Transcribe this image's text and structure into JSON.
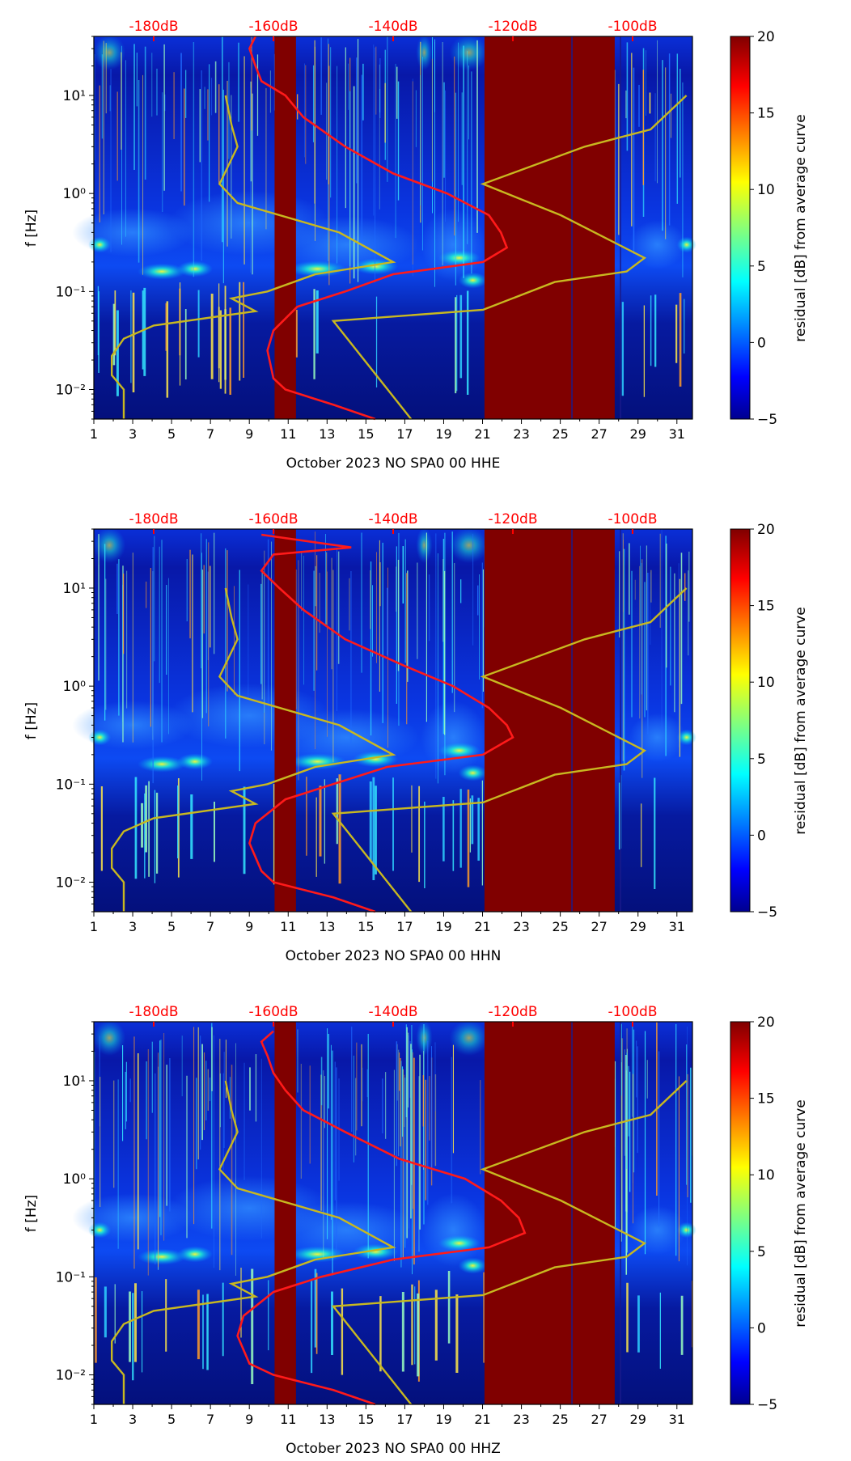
{
  "chart_data": [
    {
      "type": "heatmap",
      "component": "HHE",
      "xlabel": "October 2023 NO SPA0 00 HHE",
      "ylabel": "f [Hz]",
      "xlim": [
        1,
        31.8
      ],
      "ylim": [
        0.005,
        40
      ],
      "yscale": "log",
      "x_ticks": [
        "1",
        "3",
        "5",
        "7",
        "9",
        "11",
        "13",
        "15",
        "17",
        "19",
        "21",
        "23",
        "25",
        "27",
        "29",
        "31"
      ],
      "y_ticks": [
        {
          "value": 0.01,
          "label": "10⁻²"
        },
        {
          "value": 0.1,
          "label": "10⁻¹"
        },
        {
          "value": 1,
          "label": "10⁰"
        },
        {
          "value": 10,
          "label": "10¹"
        }
      ],
      "top_axis": {
        "labels": [
          "-180dB",
          "-160dB",
          "-140dB",
          "-120dB",
          "-100dB"
        ],
        "db_range": [
          -190,
          -90
        ]
      },
      "colorbar": {
        "label": "residual [dB] from average curve",
        "range": [
          -5,
          20
        ],
        "ticks": [
          "−5",
          "0",
          "5",
          "10",
          "15",
          "20"
        ]
      },
      "saturated_days": [
        [
          10.3,
          11.4
        ],
        [
          21.1,
          27.8
        ]
      ],
      "red_curve_db": [
        {
          "f": 40,
          "db": -163
        },
        {
          "f": 30,
          "db": -164
        },
        {
          "f": 20,
          "db": -163
        },
        {
          "f": 14,
          "db": -162
        },
        {
          "f": 10,
          "db": -158
        },
        {
          "f": 6,
          "db": -155
        },
        {
          "f": 3,
          "db": -148
        },
        {
          "f": 1.6,
          "db": -140
        },
        {
          "f": 1,
          "db": -131
        },
        {
          "f": 0.6,
          "db": -124
        },
        {
          "f": 0.4,
          "db": -122
        },
        {
          "f": 0.28,
          "db": -121
        },
        {
          "f": 0.2,
          "db": -125
        },
        {
          "f": 0.15,
          "db": -140
        },
        {
          "f": 0.1,
          "db": -148
        },
        {
          "f": 0.07,
          "db": -156
        },
        {
          "f": 0.04,
          "db": -160
        },
        {
          "f": 0.025,
          "db": -161
        },
        {
          "f": 0.013,
          "db": -160
        },
        {
          "f": 0.01,
          "db": -158
        },
        {
          "f": 0.007,
          "db": -150
        },
        {
          "f": 0.005,
          "db": -143
        }
      ]
    },
    {
      "type": "heatmap",
      "component": "HHN",
      "xlabel": "October 2023 NO SPA0 00 HHN",
      "ylabel": "f [Hz]",
      "xlim": [
        1,
        31.8
      ],
      "ylim": [
        0.005,
        40
      ],
      "yscale": "log",
      "x_ticks": [
        "1",
        "3",
        "5",
        "7",
        "9",
        "11",
        "13",
        "15",
        "17",
        "19",
        "21",
        "23",
        "25",
        "27",
        "29",
        "31"
      ],
      "y_ticks": [
        {
          "value": 0.01,
          "label": "10⁻²"
        },
        {
          "value": 0.1,
          "label": "10⁻¹"
        },
        {
          "value": 1,
          "label": "10⁰"
        },
        {
          "value": 10,
          "label": "10¹"
        }
      ],
      "top_axis": {
        "labels": [
          "-180dB",
          "-160dB",
          "-140dB",
          "-120dB",
          "-100dB"
        ],
        "db_range": [
          -190,
          -90
        ]
      },
      "colorbar": {
        "label": "residual [dB] from average curve",
        "range": [
          -5,
          20
        ],
        "ticks": [
          "−5",
          "0",
          "5",
          "10",
          "15",
          "20"
        ]
      },
      "saturated_days": [
        [
          10.3,
          11.4
        ],
        [
          21.1,
          27.8
        ]
      ],
      "red_curve_db": [
        {
          "f": 35,
          "db": -162
        },
        {
          "f": 26,
          "db": -147
        },
        {
          "f": 22,
          "db": -160
        },
        {
          "f": 15,
          "db": -162
        },
        {
          "f": 10,
          "db": -159
        },
        {
          "f": 6,
          "db": -155
        },
        {
          "f": 3,
          "db": -148
        },
        {
          "f": 1.6,
          "db": -138
        },
        {
          "f": 1,
          "db": -130
        },
        {
          "f": 0.6,
          "db": -124
        },
        {
          "f": 0.4,
          "db": -121
        },
        {
          "f": 0.3,
          "db": -120
        },
        {
          "f": 0.2,
          "db": -125
        },
        {
          "f": 0.15,
          "db": -141
        },
        {
          "f": 0.1,
          "db": -150
        },
        {
          "f": 0.07,
          "db": -158
        },
        {
          "f": 0.04,
          "db": -163
        },
        {
          "f": 0.025,
          "db": -164
        },
        {
          "f": 0.013,
          "db": -162
        },
        {
          "f": 0.01,
          "db": -160
        },
        {
          "f": 0.007,
          "db": -150
        },
        {
          "f": 0.005,
          "db": -143
        }
      ]
    },
    {
      "type": "heatmap",
      "component": "HHZ",
      "xlabel": "October 2023 NO SPA0 00 HHZ",
      "ylabel": "f [Hz]",
      "xlim": [
        1,
        31.8
      ],
      "ylim": [
        0.005,
        40
      ],
      "yscale": "log",
      "x_ticks": [
        "1",
        "3",
        "5",
        "7",
        "9",
        "11",
        "13",
        "15",
        "17",
        "19",
        "21",
        "23",
        "25",
        "27",
        "29",
        "31"
      ],
      "y_ticks": [
        {
          "value": 0.01,
          "label": "10⁻²"
        },
        {
          "value": 0.1,
          "label": "10⁻¹"
        },
        {
          "value": 1,
          "label": "10⁰"
        },
        {
          "value": 10,
          "label": "10¹"
        }
      ],
      "top_axis": {
        "labels": [
          "-180dB",
          "-160dB",
          "-140dB",
          "-120dB",
          "-100dB"
        ],
        "db_range": [
          -190,
          -90
        ]
      },
      "colorbar": {
        "label": "residual [dB] from average curve",
        "range": [
          -5,
          20
        ],
        "ticks": [
          "−5",
          "0",
          "5",
          "10",
          "15",
          "20"
        ]
      },
      "saturated_days": [
        [
          10.3,
          11.4
        ],
        [
          21.1,
          27.8
        ]
      ],
      "red_curve_db": [
        {
          "f": 32,
          "db": -160
        },
        {
          "f": 25,
          "db": -162
        },
        {
          "f": 18,
          "db": -161
        },
        {
          "f": 12,
          "db": -160
        },
        {
          "f": 8,
          "db": -158
        },
        {
          "f": 5,
          "db": -155
        },
        {
          "f": 3,
          "db": -148
        },
        {
          "f": 1.6,
          "db": -139
        },
        {
          "f": 1,
          "db": -128
        },
        {
          "f": 0.6,
          "db": -122
        },
        {
          "f": 0.4,
          "db": -119
        },
        {
          "f": 0.28,
          "db": -118
        },
        {
          "f": 0.2,
          "db": -124
        },
        {
          "f": 0.15,
          "db": -140
        },
        {
          "f": 0.1,
          "db": -152
        },
        {
          "f": 0.07,
          "db": -160
        },
        {
          "f": 0.04,
          "db": -165
        },
        {
          "f": 0.025,
          "db": -166
        },
        {
          "f": 0.013,
          "db": -164
        },
        {
          "f": 0.01,
          "db": -160
        },
        {
          "f": 0.007,
          "db": -150
        },
        {
          "f": 0.005,
          "db": -143
        }
      ]
    }
  ],
  "reference_curves": {
    "color": "#c8b820",
    "nlnm_db": [
      {
        "f": 10,
        "db": -168
      },
      {
        "f": 5,
        "db": -167
      },
      {
        "f": 3,
        "db": -166
      },
      {
        "f": 1.25,
        "db": -169
      },
      {
        "f": 0.8,
        "db": -166
      },
      {
        "f": 0.4,
        "db": -149
      },
      {
        "f": 0.2,
        "db": -140
      },
      {
        "f": 0.15,
        "db": -153
      },
      {
        "f": 0.1,
        "db": -161
      },
      {
        "f": 0.085,
        "db": -167
      },
      {
        "f": 0.063,
        "db": -163
      },
      {
        "f": 0.045,
        "db": -180
      },
      {
        "f": 0.033,
        "db": -185
      },
      {
        "f": 0.022,
        "db": -187
      },
      {
        "f": 0.014,
        "db": -187
      },
      {
        "f": 0.01,
        "db": -185
      },
      {
        "f": 0.005,
        "db": -185
      }
    ],
    "nhnm_db": [
      {
        "f": 10,
        "db": -91
      },
      {
        "f": 4.5,
        "db": -97
      },
      {
        "f": 3,
        "db": -108
      },
      {
        "f": 1.25,
        "db": -125
      },
      {
        "f": 0.6,
        "db": -112
      },
      {
        "f": 0.22,
        "db": -98
      },
      {
        "f": 0.16,
        "db": -101
      },
      {
        "f": 0.125,
        "db": -113
      },
      {
        "f": 0.065,
        "db": -125
      },
      {
        "f": 0.05,
        "db": -150
      },
      {
        "f": 0.005,
        "db": -137
      }
    ]
  },
  "colors": {
    "axis": "#000000",
    "curve_red": "#ff1a1a",
    "label_red": "#ff0000",
    "saturated": "#800000",
    "background": "#000a8c"
  }
}
